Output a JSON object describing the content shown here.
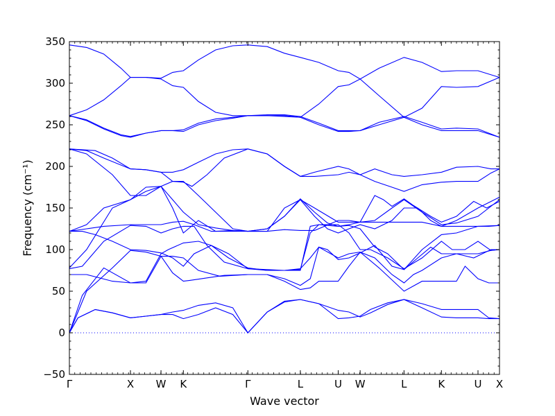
{
  "chart_data": {
    "type": "line",
    "title": "",
    "xlabel": "Wave vector",
    "ylabel": "Frequency (cm⁻¹)",
    "ylim": [
      -50,
      350
    ],
    "yticks": [
      -50,
      0,
      50,
      100,
      150,
      200,
      250,
      300,
      350
    ],
    "xlim": [
      0,
      100
    ],
    "x_ticks": [
      {
        "label": "Γ",
        "x": 0
      },
      {
        "label": "X",
        "x": 14.2
      },
      {
        "label": "W",
        "x": 21.3
      },
      {
        "label": "K",
        "x": 26.5
      },
      {
        "label": "Γ",
        "x": 41.5
      },
      {
        "label": "L",
        "x": 53.7
      },
      {
        "label": "U",
        "x": 62.5
      },
      {
        "label": "W",
        "x": 67.6
      },
      {
        "label": "L",
        "x": 77.8
      },
      {
        "label": "K",
        "x": 86.5
      },
      {
        "label": "U",
        "x": 95.0
      },
      {
        "label": "X",
        "x": 100
      }
    ],
    "zero_line": {
      "y": 0,
      "style": "dotted",
      "color": "#0000ff"
    },
    "series_color": "#0000ff",
    "series": [
      {
        "x": [
          0,
          2,
          6,
          10,
          14.2,
          17.8,
          21.3,
          24,
          26.5,
          30,
          34,
          38,
          41.5,
          46,
          50,
          53.7,
          58,
          62.5,
          65,
          67.6,
          70,
          74,
          77.8,
          82,
          86.5,
          90,
          95,
          97.5,
          100
        ],
        "y": [
          0,
          18,
          28,
          24,
          18,
          20,
          22,
          22,
          17,
          22,
          30,
          22,
          0,
          25,
          37,
          40,
          35,
          17,
          18,
          20,
          28,
          36,
          40,
          30,
          19,
          18,
          18,
          17,
          17
        ]
      },
      {
        "x": [
          0,
          2,
          6,
          10,
          14.2,
          17.8,
          21.3,
          24,
          26.5,
          30,
          34,
          38,
          41.5,
          46,
          50,
          53.7,
          58,
          62.5,
          65,
          67.6,
          70,
          74,
          77.8,
          82,
          86.5,
          90,
          95,
          97.5,
          100
        ],
        "y": [
          0,
          18,
          28,
          24,
          18,
          20,
          22,
          25,
          27,
          33,
          36,
          30,
          0,
          25,
          38,
          40,
          35,
          27,
          25,
          19,
          24,
          34,
          40,
          35,
          28,
          28,
          28,
          18,
          17
        ]
      },
      {
        "x": [
          0,
          4,
          10,
          14.2,
          17.8,
          21.3,
          24,
          26.5,
          28,
          32,
          36,
          41.5,
          46,
          50,
          53.7,
          56,
          58,
          62.5,
          65,
          67.6,
          72,
          77.8,
          82,
          86.5,
          90,
          92,
          95,
          97.5,
          100
        ],
        "y": [
          0,
          50,
          78,
          99,
          97,
          92,
          72,
          62,
          63,
          66,
          69,
          70,
          70,
          62,
          52,
          54,
          62,
          62,
          80,
          97,
          78,
          50,
          62,
          62,
          62,
          80,
          65,
          60,
          60
        ]
      },
      {
        "x": [
          0,
          3,
          8,
          14.2,
          17.8,
          21.3,
          24,
          26.5,
          30,
          35,
          41.5,
          46,
          50,
          53.7,
          56,
          58,
          62.5,
          65,
          67.6,
          71,
          75,
          77.8,
          80,
          82,
          86.5,
          90,
          95,
          98,
          100
        ],
        "y": [
          0,
          45,
          78,
          60,
          60,
          92,
          92,
          90,
          75,
          68,
          70,
          70,
          65,
          57,
          65,
          103,
          90,
          95,
          97,
          90,
          70,
          60,
          70,
          75,
          90,
          95,
          95,
          99,
          100
        ]
      },
      {
        "x": [
          0,
          4,
          10,
          14.2,
          17.8,
          21.3,
          23,
          26.5,
          30,
          33,
          37,
          41.5,
          46,
          50,
          53.7,
          56,
          58,
          60,
          62.5,
          65,
          67.6,
          71,
          75,
          77.8,
          81,
          84,
          86.5,
          90,
          94,
          96,
          98,
          100
        ],
        "y": [
          70,
          70,
          62,
          60,
          62,
          95,
          100,
          108,
          110,
          105,
          90,
          78,
          75,
          75,
          77,
          90,
          103,
          100,
          88,
          90,
          96,
          105,
          80,
          76,
          90,
          103,
          95,
          95,
          90,
          95,
          100,
          100
        ]
      },
      {
        "x": [
          0,
          3,
          8,
          14.2,
          17.8,
          21.3,
          24,
          26.5,
          29,
          32,
          36,
          41.5,
          46,
          50,
          53.7,
          56,
          58,
          62.5,
          65,
          67.6,
          71,
          74,
          77.8,
          82,
          86.5,
          90,
          95,
          97.5,
          100
        ],
        "y": [
          77,
          80,
          110,
          129,
          128,
          120,
          125,
          128,
          128,
          105,
          85,
          77,
          75,
          75,
          76,
          120,
          130,
          128,
          129,
          125,
          103,
          95,
          76,
          100,
          118,
          120,
          128,
          128,
          129
        ]
      },
      {
        "x": [
          0,
          3,
          6,
          10,
          14.2,
          17.8,
          21.3,
          24,
          26.5,
          29,
          33,
          37,
          41.5,
          46,
          50,
          53.7,
          56,
          58,
          62.5,
          65,
          67.6,
          70,
          74,
          77.8,
          82,
          86.5,
          89,
          92,
          95,
          98,
          100
        ],
        "y": [
          122,
          122,
          118,
          110,
          100,
          99,
          96,
          90,
          80,
          95,
          105,
          95,
          77,
          76,
          75,
          75,
          128,
          130,
          130,
          120,
          100,
          100,
          90,
          77,
          90,
          110,
          100,
          100,
          110,
          99,
          100
        ]
      },
      {
        "x": [
          0,
          4,
          8,
          14.2,
          17.8,
          21.3,
          24,
          26.5,
          29,
          33,
          37,
          41.5,
          46,
          50,
          53.7,
          57,
          62.5,
          65,
          67.6,
          71,
          75,
          77.8,
          82,
          86.5,
          90,
          95,
          100
        ],
        "y": [
          122,
          125,
          128,
          130,
          130,
          130,
          133,
          134,
          130,
          122,
          122,
          122,
          122,
          124,
          123,
          123,
          135,
          135,
          133,
          133,
          133,
          133,
          133,
          128,
          128,
          128,
          129
        ]
      },
      {
        "x": [
          0,
          4,
          8,
          14.2,
          17.8,
          21.3,
          24,
          26.5,
          30,
          34,
          38,
          41.5,
          46,
          50,
          53.7,
          57,
          62.5,
          65,
          67.6,
          71,
          75,
          77.8,
          82,
          86.5,
          90,
          95,
          100
        ],
        "y": [
          122,
          130,
          150,
          160,
          175,
          176,
          160,
          145,
          130,
          126,
          123,
          122,
          125,
          140,
          160,
          150,
          133,
          133,
          133,
          135,
          150,
          160,
          145,
          130,
          132,
          140,
          160
        ]
      },
      {
        "x": [
          0,
          4,
          10,
          14.2,
          17.8,
          21.3,
          24,
          26.5,
          30,
          34,
          38,
          41.5,
          46,
          50,
          53.7,
          57,
          60,
          62.5,
          65,
          67.6,
          71,
          75,
          77.8,
          81,
          84,
          86.5,
          90,
          95,
          100
        ],
        "y": [
          78,
          100,
          150,
          160,
          170,
          176,
          150,
          120,
          135,
          122,
          123,
          122,
          122,
          150,
          160,
          140,
          125,
          120,
          125,
          130,
          125,
          135,
          150,
          150,
          135,
          128,
          135,
          150,
          163
        ]
      },
      {
        "x": [
          0,
          4,
          10,
          14.2,
          17.8,
          21.3,
          24,
          26.5,
          30,
          34,
          38,
          41.5,
          46,
          50,
          53.7,
          57,
          60,
          62.5,
          65,
          67.6,
          71,
          73,
          75,
          77.8,
          80,
          84,
          86.5,
          90,
          94,
          97,
          100
        ],
        "y": [
          221,
          215,
          190,
          165,
          165,
          176,
          182,
          182,
          165,
          145,
          125,
          122,
          125,
          140,
          161,
          145,
          132,
          128,
          130,
          133,
          165,
          160,
          152,
          161,
          153,
          140,
          133,
          140,
          158,
          150,
          158
        ]
      },
      {
        "x": [
          0,
          4,
          8,
          14.2,
          17.8,
          21.3,
          24,
          26.5,
          28.5,
          32,
          36,
          41.5,
          46,
          50,
          53.7,
          57,
          62.5,
          65,
          67.6,
          71,
          75,
          77.8,
          82,
          86.5,
          90,
          95,
          98,
          100
        ],
        "y": [
          221,
          219,
          210,
          197,
          196,
          193,
          182,
          181,
          176,
          190,
          210,
          221,
          215,
          200,
          188,
          188,
          190,
          193,
          190,
          182,
          175,
          170,
          178,
          181,
          182,
          182,
          192,
          197
        ]
      },
      {
        "x": [
          0,
          6,
          10,
          14.2,
          17.8,
          21.3,
          24,
          26.5,
          30,
          34,
          38,
          41.5,
          46,
          50,
          53.7,
          57,
          62.5,
          65,
          67.6,
          71,
          75,
          77.8,
          82,
          86.5,
          90,
          95,
          98,
          100
        ],
        "y": [
          221,
          219,
          210,
          197,
          196,
          193,
          193,
          196,
          205,
          215,
          220,
          221,
          215,
          200,
          188,
          193,
          200,
          197,
          190,
          197,
          190,
          188,
          190,
          193,
          199,
          200,
          197,
          197
        ]
      },
      {
        "x": [
          0,
          4,
          8,
          12,
          14.2,
          17.8,
          21.3,
          24,
          26.5,
          30,
          34,
          38,
          41.5,
          46,
          50,
          53.7,
          58,
          62.5,
          65,
          67.6,
          72,
          77.8,
          82,
          86.5,
          90,
          95,
          100
        ],
        "y": [
          261,
          255,
          245,
          237,
          235,
          240,
          243,
          243,
          242,
          250,
          255,
          258,
          261,
          261,
          260,
          259,
          250,
          242,
          242,
          243,
          250,
          259,
          250,
          243,
          243,
          243,
          235
        ]
      },
      {
        "x": [
          0,
          4,
          8,
          12,
          14.2,
          17.8,
          21.3,
          24,
          26.5,
          30,
          34,
          38,
          41.5,
          46,
          50,
          53.7,
          58,
          62.5,
          65,
          67.6,
          72,
          77.8,
          82,
          86.5,
          90,
          95,
          100
        ],
        "y": [
          261,
          256,
          246,
          238,
          236,
          240,
          243,
          243,
          244,
          252,
          257,
          259,
          261,
          262,
          262,
          260,
          252,
          243,
          243,
          243,
          253,
          260,
          253,
          245,
          246,
          245,
          235
        ]
      },
      {
        "x": [
          0,
          4,
          8,
          12,
          14.2,
          17.8,
          21.3,
          24,
          26.5,
          30,
          34,
          38,
          41.5,
          46,
          50,
          53.7,
          58,
          62.5,
          65,
          67.6,
          72,
          77.8,
          82,
          86.5,
          90,
          95,
          100
        ],
        "y": [
          261,
          268,
          280,
          297,
          307,
          307,
          305,
          297,
          295,
          278,
          265,
          261,
          261,
          261,
          261,
          259,
          275,
          296,
          298,
          305,
          285,
          259,
          270,
          296,
          295,
          296,
          307
        ]
      },
      {
        "x": [
          0,
          4,
          8,
          12,
          14.2,
          17.8,
          21.3,
          24,
          26.5,
          30,
          34,
          38,
          41.5,
          46,
          50,
          53.7,
          58,
          62.5,
          65,
          67.6,
          72,
          77.8,
          82,
          86.5,
          90,
          95,
          100
        ],
        "y": [
          346,
          343,
          335,
          318,
          307,
          307,
          306,
          313,
          315,
          328,
          340,
          345,
          346,
          344,
          336,
          331,
          325,
          315,
          313,
          305,
          318,
          331,
          325,
          314,
          315,
          315,
          307
        ]
      }
    ]
  }
}
